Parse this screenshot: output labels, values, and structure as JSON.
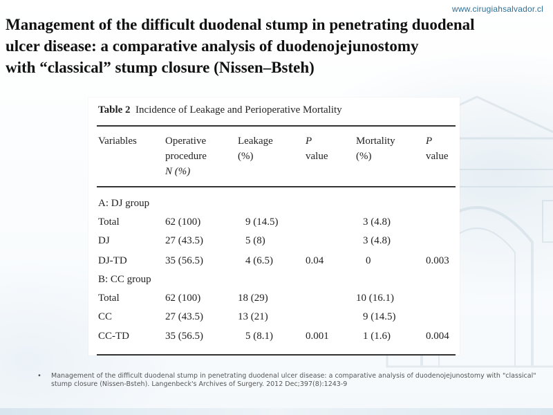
{
  "website": "www.cirugiahsalvador.cl",
  "title": {
    "line1": "Management of the difficult duodenal stump in penetrating duodenal",
    "line2": "ulcer disease: a comparative analysis of duodenojejunostomy",
    "line3": "with “classical” stump closure (Nissen–Bsteh)"
  },
  "table": {
    "caption_label": "Table 2",
    "caption_text": "Incidence of Leakage and Perioperative Mortality",
    "headers": {
      "variables": "Variables",
      "operative_l1": "Operative",
      "operative_l2": "procedure",
      "operative_l3": "N (%)",
      "leakage_l1": "Leakage",
      "leakage_l2": "(%)",
      "p1_l1": "P",
      "p1_l2": "value",
      "mortality_l1": "Mortality",
      "mortality_l2": "(%)",
      "p2_l1": "P",
      "p2_l2": "value"
    },
    "groups": [
      {
        "label": "A: DJ group",
        "rows": [
          {
            "variable": "Total",
            "operative": "62 (100)",
            "leakage": "9 (14.5)",
            "p_leak": "",
            "mortality": "3 (4.8)",
            "p_mort": ""
          },
          {
            "variable": "DJ",
            "operative": "27 (43.5)",
            "leakage": "5 (8)",
            "p_leak": "",
            "mortality": "3 (4.8)",
            "p_mort": ""
          },
          {
            "variable": "DJ-TD",
            "operative": "35 (56.5)",
            "leakage": "4 (6.5)",
            "p_leak": "0.04",
            "mortality": "0",
            "p_mort": "0.003"
          }
        ]
      },
      {
        "label": "B: CC group",
        "rows": [
          {
            "variable": "Total",
            "operative": "62 (100)",
            "leakage": "18 (29)",
            "p_leak": "",
            "mortality": "10 (16.1)",
            "p_mort": ""
          },
          {
            "variable": "CC",
            "operative": "27 (43.5)",
            "leakage": "13 (21)",
            "p_leak": "",
            "mortality": "9 (14.5)",
            "p_mort": ""
          },
          {
            "variable": "CC-TD",
            "operative": "35 (56.5)",
            "leakage": "5 (8.1)",
            "p_leak": "0.001",
            "mortality": "1 (1.6)",
            "p_mort": "0.004"
          }
        ]
      }
    ]
  },
  "footnote": {
    "bullet": "•",
    "text": "Management of the difficult duodenal stump in penetrating duodenal ulcer disease: a comparative analysis of duodenojejunostomy with \"classical\" stump closure (Nissen-Bsteh). Langenbeck's Archives of Surgery. 2012 Dec;397(8):1243-9"
  }
}
